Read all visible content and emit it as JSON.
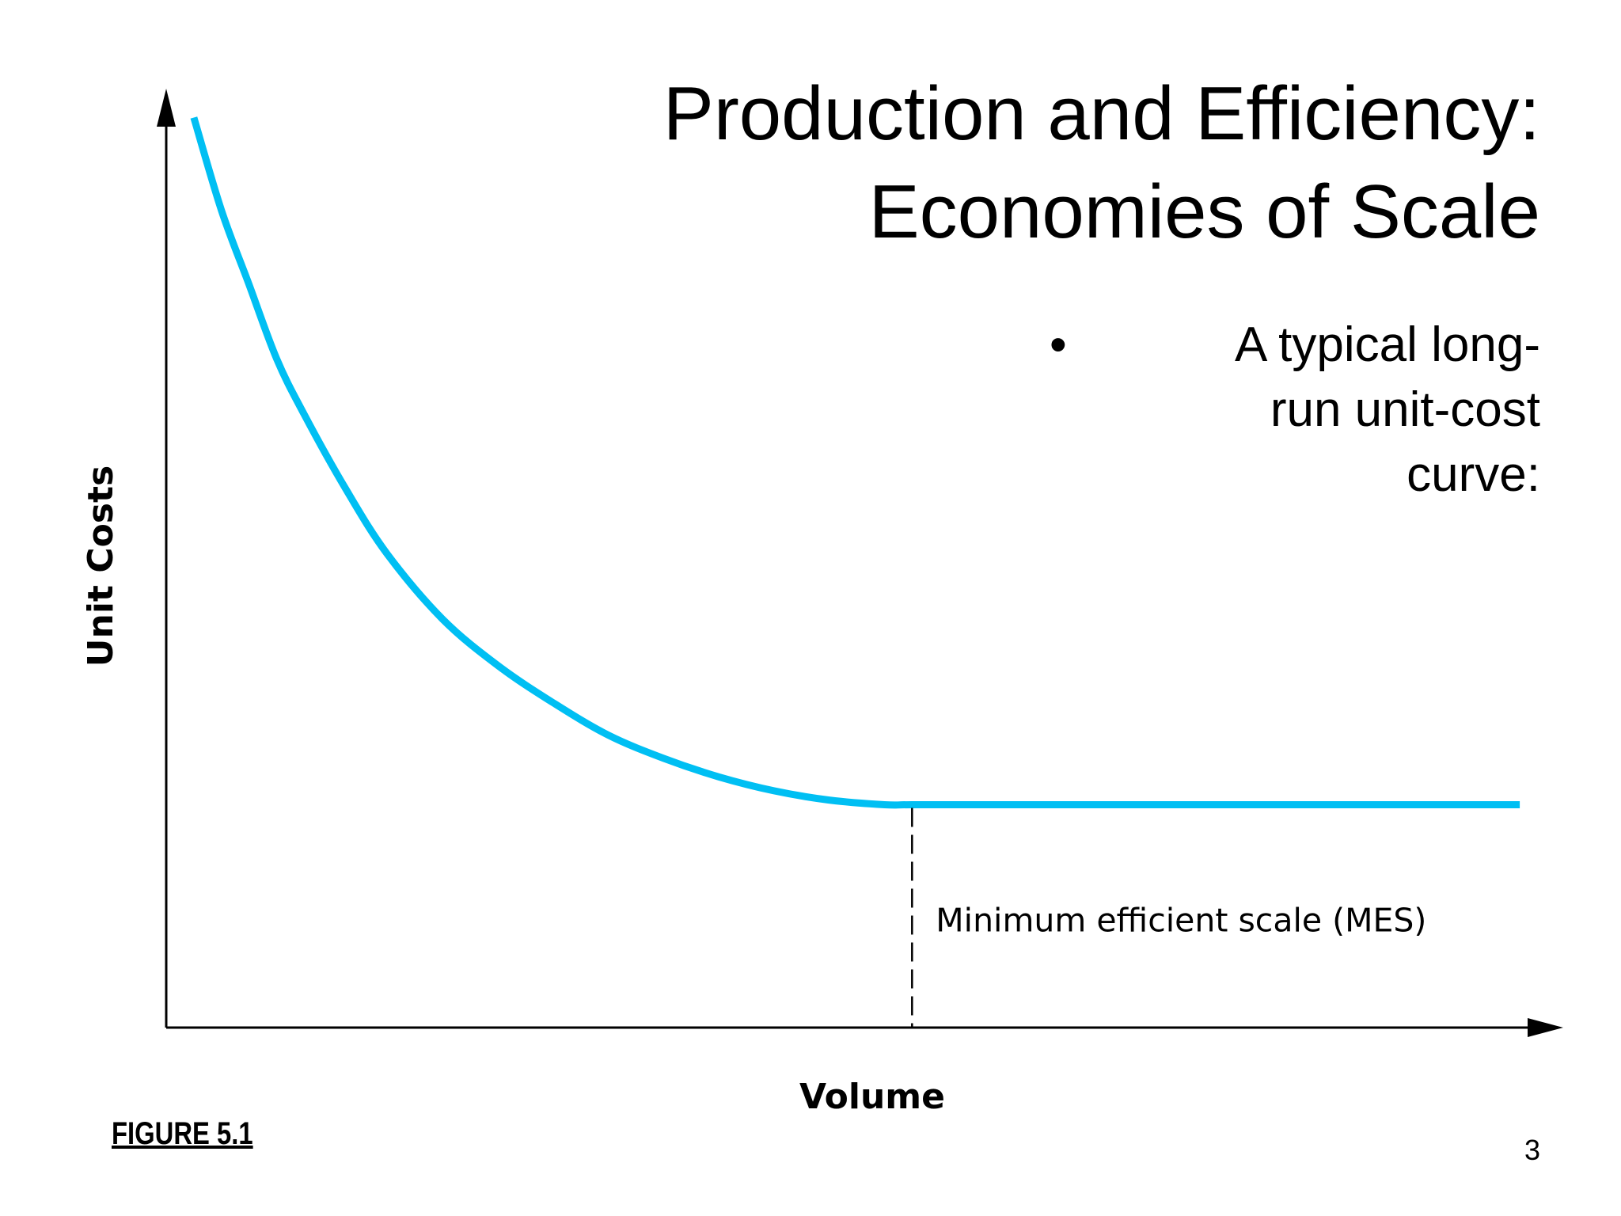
{
  "slide": {
    "title_lines": [
      "Production and Efficiency:",
      "Economies of Scale"
    ],
    "bullet": {
      "symbol": "•",
      "lines": [
        "A typical long-",
        "run unit-cost",
        "curve:"
      ]
    },
    "figure_label": "FIGURE 5.1",
    "page_number": "3"
  },
  "chart_data": {
    "type": "line",
    "title": "",
    "xlabel": "Volume",
    "ylabel": "Unit Costs",
    "xlim": [
      0,
      100
    ],
    "ylim": [
      0,
      100
    ],
    "x_ticks_shown": false,
    "y_ticks_shown": false,
    "grid": false,
    "legend": "none",
    "series": [
      {
        "color": "#00bff3",
        "x": [
          2,
          4,
          6,
          8,
          10,
          13,
          16,
          20,
          24,
          28,
          32,
          36,
          40,
          44,
          48,
          52,
          54,
          60,
          70,
          80,
          90,
          98
        ],
        "y": [
          98,
          88,
          80,
          72,
          66,
          58,
          51,
          44,
          39,
          35,
          31.5,
          29,
          27,
          25.5,
          24.5,
          24,
          24,
          24,
          24,
          24,
          24,
          24
        ]
      }
    ],
    "annotations": [
      {
        "type": "vertical-dashed-line",
        "x": 54,
        "y_from": 0,
        "y_to": 24,
        "label": "Minimum efficient scale (MES)"
      }
    ]
  }
}
